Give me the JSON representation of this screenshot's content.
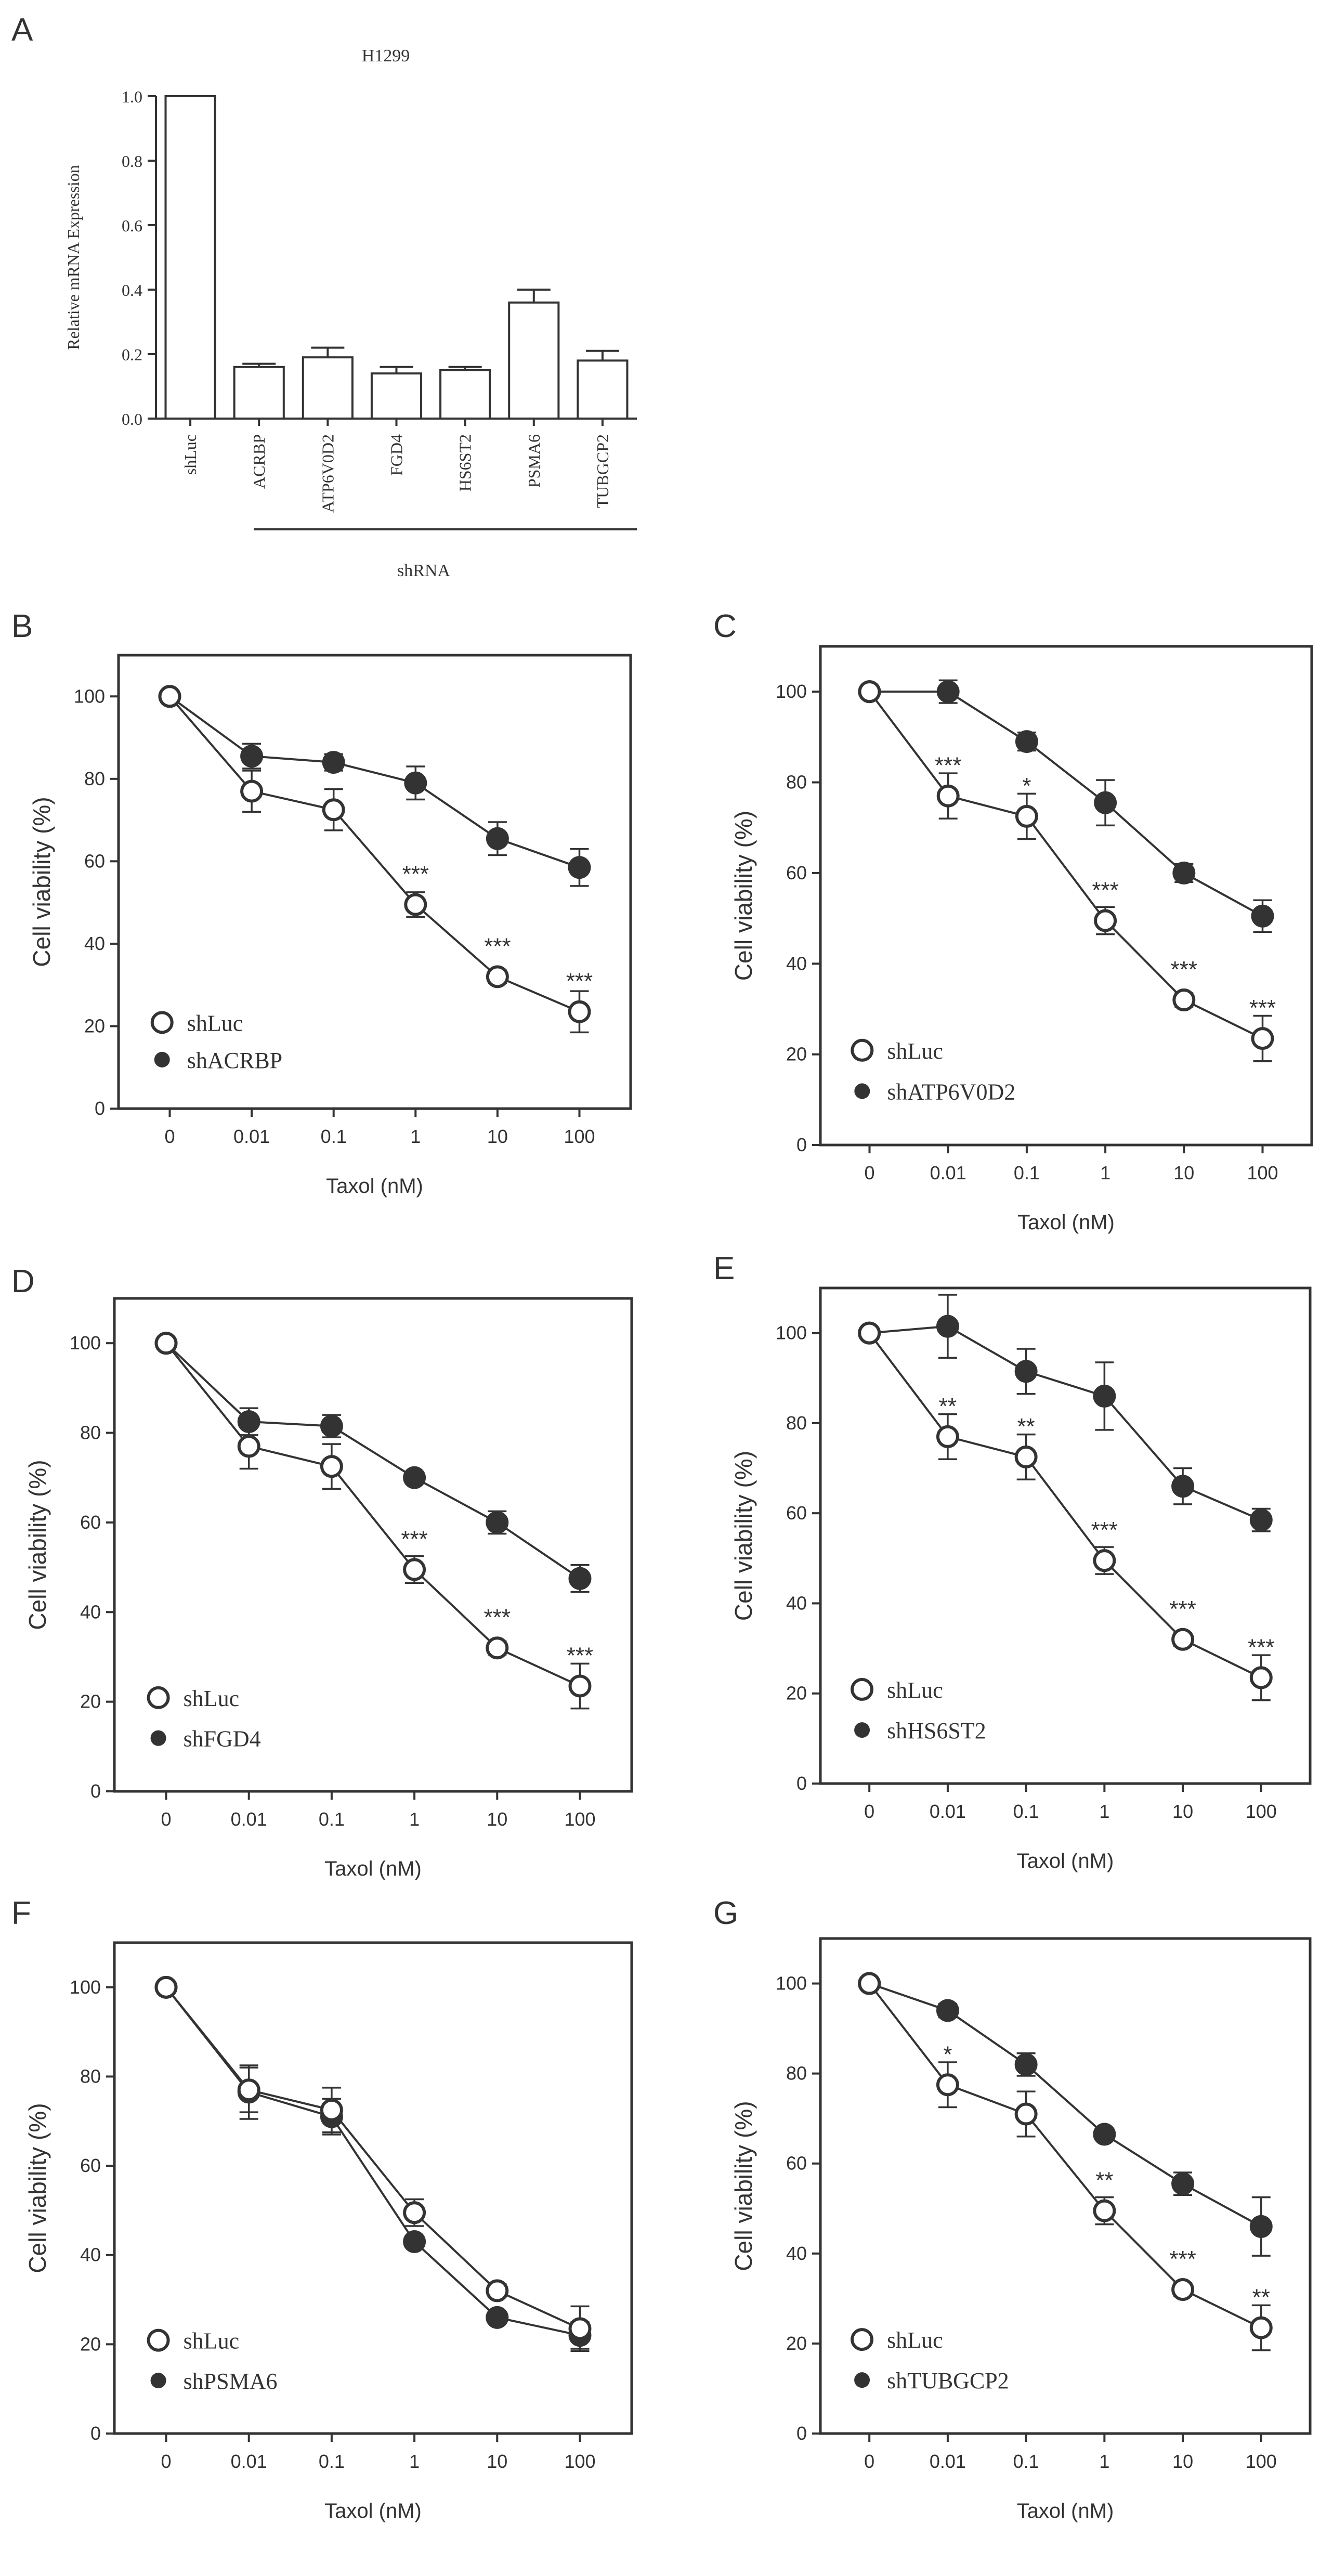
{
  "chart_data": [
    {
      "type": "bar",
      "panel_label": "A",
      "title": "H1299",
      "ylabel": "Relative mRNA Expression",
      "xlabel": "",
      "group_label": "shRNA",
      "categories": [
        "shLuc",
        "ACRBP",
        "ATP6V0D2",
        "FGD4",
        "HS6ST2",
        "PSMA6",
        "TUBGCP2"
      ],
      "values": [
        1.0,
        0.16,
        0.19,
        0.14,
        0.15,
        0.36,
        0.18
      ],
      "errors": [
        0.0,
        0.01,
        0.03,
        0.02,
        0.01,
        0.04,
        0.03
      ],
      "yticks": [
        "0.0",
        "0.2",
        "0.4",
        "0.6",
        "0.8",
        "1.0"
      ],
      "ylim": [
        0,
        1.0
      ]
    },
    {
      "type": "line",
      "panel_label": "B",
      "xlabel": "Taxol (nM)",
      "ylabel": "Cell viability (%)",
      "x": [
        "0",
        "0.01",
        "0.1",
        "1",
        "10",
        "100"
      ],
      "ylim": [
        0,
        110
      ],
      "yticks": [
        "0",
        "20",
        "40",
        "60",
        "80",
        "100"
      ],
      "series": [
        {
          "name": "shLuc",
          "marker": "open",
          "values": [
            100,
            77,
            72.5,
            49.5,
            32,
            23.5
          ],
          "errors": [
            0,
            5,
            5,
            3,
            1.5,
            5
          ]
        },
        {
          "name": "shACRBP",
          "marker": "filled",
          "values": [
            100,
            85.5,
            84,
            79,
            65.5,
            58.5
          ],
          "errors": [
            0,
            3,
            2,
            4,
            4,
            4.5
          ]
        }
      ],
      "annotations": [
        {
          "x": "1",
          "y": 49.5,
          "text": "***"
        },
        {
          "x": "10",
          "y": 32,
          "text": "***"
        },
        {
          "x": "100",
          "y": 23.5,
          "text": "***"
        }
      ]
    },
    {
      "type": "line",
      "panel_label": "C",
      "xlabel": "Taxol (nM)",
      "ylabel": "Cell viability (%)",
      "x": [
        "0",
        "0.01",
        "0.1",
        "1",
        "10",
        "100"
      ],
      "ylim": [
        0,
        110
      ],
      "yticks": [
        "0",
        "20",
        "40",
        "60",
        "80",
        "100"
      ],
      "series": [
        {
          "name": "shLuc",
          "marker": "open",
          "values": [
            100,
            77,
            72.5,
            49.5,
            32,
            23.5
          ],
          "errors": [
            0,
            5,
            5,
            3,
            1.5,
            5
          ]
        },
        {
          "name": "shATP6V0D2",
          "marker": "filled",
          "values": [
            100,
            100,
            89,
            75.5,
            60,
            50.5
          ],
          "errors": [
            0,
            2.5,
            2,
            5,
            2,
            3.5
          ]
        }
      ],
      "annotations": [
        {
          "x": "0.01",
          "y": 77,
          "text": "***"
        },
        {
          "x": "0.1",
          "y": 72.5,
          "text": "*"
        },
        {
          "x": "1",
          "y": 49.5,
          "text": "***"
        },
        {
          "x": "10",
          "y": 32,
          "text": "***"
        },
        {
          "x": "100",
          "y": 23.5,
          "text": "***"
        }
      ]
    },
    {
      "type": "line",
      "panel_label": "D",
      "xlabel": "Taxol (nM)",
      "ylabel": "Cell viability (%)",
      "x": [
        "0",
        "0.01",
        "0.1",
        "1",
        "10",
        "100"
      ],
      "ylim": [
        0,
        110
      ],
      "yticks": [
        "0",
        "20",
        "40",
        "60",
        "80",
        "100"
      ],
      "series": [
        {
          "name": "shLuc",
          "marker": "open",
          "values": [
            100,
            77,
            72.5,
            49.5,
            32,
            23.5
          ],
          "errors": [
            0,
            5,
            5,
            3,
            1.5,
            5
          ]
        },
        {
          "name": "shFGD4",
          "marker": "filled",
          "values": [
            100,
            82.5,
            81.5,
            70,
            60,
            47.5
          ],
          "errors": [
            0,
            3,
            2.5,
            1,
            2.5,
            3
          ]
        }
      ],
      "annotations": [
        {
          "x": "1",
          "y": 49.5,
          "text": "***"
        },
        {
          "x": "10",
          "y": 32,
          "text": "***"
        },
        {
          "x": "100",
          "y": 23.5,
          "text": "***"
        }
      ]
    },
    {
      "type": "line",
      "panel_label": "E",
      "xlabel": "Taxol (nM)",
      "ylabel": "Cell viability (%)",
      "x": [
        "0",
        "0.01",
        "0.1",
        "1",
        "10",
        "100"
      ],
      "ylim": [
        0,
        110
      ],
      "yticks": [
        "0",
        "20",
        "40",
        "60",
        "80",
        "100"
      ],
      "series": [
        {
          "name": "shLuc",
          "marker": "open",
          "values": [
            100,
            77,
            72.5,
            49.5,
            32,
            23.5
          ],
          "errors": [
            0,
            5,
            5,
            3,
            1.5,
            5
          ]
        },
        {
          "name": "shHS6ST2",
          "marker": "filled",
          "values": [
            100,
            101.5,
            91.5,
            86,
            66,
            58.5
          ],
          "errors": [
            0,
            7,
            5,
            7.5,
            4,
            2.5
          ]
        }
      ],
      "annotations": [
        {
          "x": "0.01",
          "y": 77,
          "text": "**"
        },
        {
          "x": "0.1",
          "y": 72.5,
          "text": "**"
        },
        {
          "x": "1",
          "y": 49.5,
          "text": "***"
        },
        {
          "x": "10",
          "y": 32,
          "text": "***"
        },
        {
          "x": "100",
          "y": 23.5,
          "text": "***"
        }
      ]
    },
    {
      "type": "line",
      "panel_label": "F",
      "xlabel": "Taxol (nM)",
      "ylabel": "Cell viability (%)",
      "x": [
        "0",
        "0.01",
        "0.1",
        "1",
        "10",
        "100"
      ],
      "ylim": [
        0,
        110
      ],
      "yticks": [
        "0",
        "20",
        "40",
        "60",
        "80",
        "100"
      ],
      "series": [
        {
          "name": "shLuc",
          "marker": "open",
          "values": [
            100,
            77,
            72.5,
            49.5,
            32,
            23.5
          ],
          "errors": [
            0,
            5,
            5,
            3,
            1.5,
            5
          ]
        },
        {
          "name": "shPSMA6",
          "marker": "filled",
          "values": [
            100,
            76.5,
            71,
            43,
            26,
            22
          ],
          "errors": [
            0,
            6,
            4,
            1,
            1,
            3
          ]
        }
      ],
      "annotations": []
    },
    {
      "type": "line",
      "panel_label": "G",
      "xlabel": "Taxol (nM)",
      "ylabel": "Cell viability (%)",
      "x": [
        "0",
        "0.01",
        "0.1",
        "1",
        "10",
        "100"
      ],
      "ylim": [
        0,
        110
      ],
      "yticks": [
        "0",
        "20",
        "40",
        "60",
        "80",
        "100"
      ],
      "series": [
        {
          "name": "shLuc",
          "marker": "open",
          "values": [
            100,
            77.5,
            71,
            49.5,
            32,
            23.5
          ],
          "errors": [
            0,
            5,
            5,
            3,
            1.5,
            5
          ]
        },
        {
          "name": "shTUBGCP2",
          "marker": "filled",
          "values": [
            100,
            94,
            82,
            66.5,
            55.5,
            46
          ],
          "errors": [
            0,
            1.5,
            2.5,
            1,
            2.5,
            6.5
          ]
        }
      ],
      "annotations": [
        {
          "x": "0.01",
          "y": 77.5,
          "text": "*"
        },
        {
          "x": "1",
          "y": 49.5,
          "text": "**"
        },
        {
          "x": "10",
          "y": 32,
          "text": "***"
        },
        {
          "x": "100",
          "y": 23.5,
          "text": "**"
        }
      ]
    }
  ]
}
